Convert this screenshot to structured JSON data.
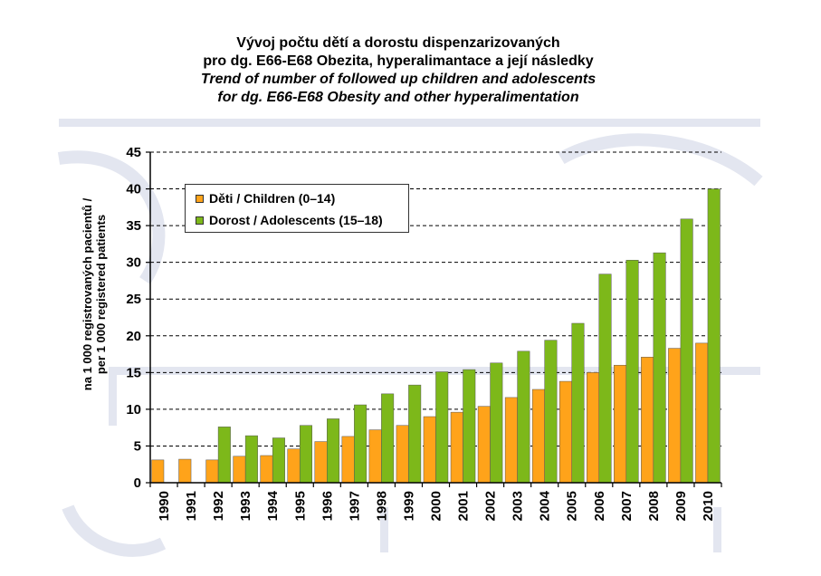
{
  "title": {
    "cz_line1": "Vývoj počtu dětí a dorostu dispenzarizovaných",
    "cz_line2": "pro dg. E66-E68 Obezita, hyperalimantace a její následky",
    "en_line1": "Trend of number of followed up children and adolescents",
    "en_line2": "for dg. E66-E68 Obesity and other hyperalimentation"
  },
  "ylabel": {
    "cz": "na 1 000 registrovaných pacientů /",
    "en": "per 1 000 registered patients"
  },
  "colors": {
    "children": "#FFA31A",
    "adolescents": "#7DB81A",
    "watermark": "#E3E6F0",
    "grid": "#000000"
  },
  "chart_data": {
    "type": "bar",
    "categories": [
      "1990",
      "1991",
      "1992",
      "1993",
      "1994",
      "1995",
      "1996",
      "1997",
      "1998",
      "1999",
      "2000",
      "2001",
      "2002",
      "2003",
      "2004",
      "2005",
      "2006",
      "2007",
      "2008",
      "2009",
      "2010"
    ],
    "series": [
      {
        "name": "Děti / Children (0–14)",
        "color": "#FFA31A",
        "values": [
          3.1,
          3.2,
          3.1,
          3.6,
          3.7,
          4.6,
          5.6,
          6.3,
          7.2,
          7.8,
          9.0,
          9.6,
          10.4,
          11.6,
          12.7,
          13.8,
          15.0,
          16.0,
          17.1,
          18.3,
          19.0
        ]
      },
      {
        "name": "Dorost / Adolescents (15–18)",
        "color": "#7DB81A",
        "values": [
          null,
          null,
          7.6,
          6.4,
          6.1,
          7.8,
          8.7,
          10.6,
          12.1,
          13.3,
          15.1,
          15.4,
          16.3,
          17.9,
          19.4,
          21.7,
          28.4,
          30.3,
          31.3,
          35.9,
          40.0
        ]
      }
    ],
    "ylim": [
      0,
      45
    ],
    "yticks": [
      0,
      5,
      10,
      15,
      20,
      25,
      30,
      35,
      40,
      45
    ],
    "grid": "horizontal dashed",
    "legend_position": "top-left"
  }
}
